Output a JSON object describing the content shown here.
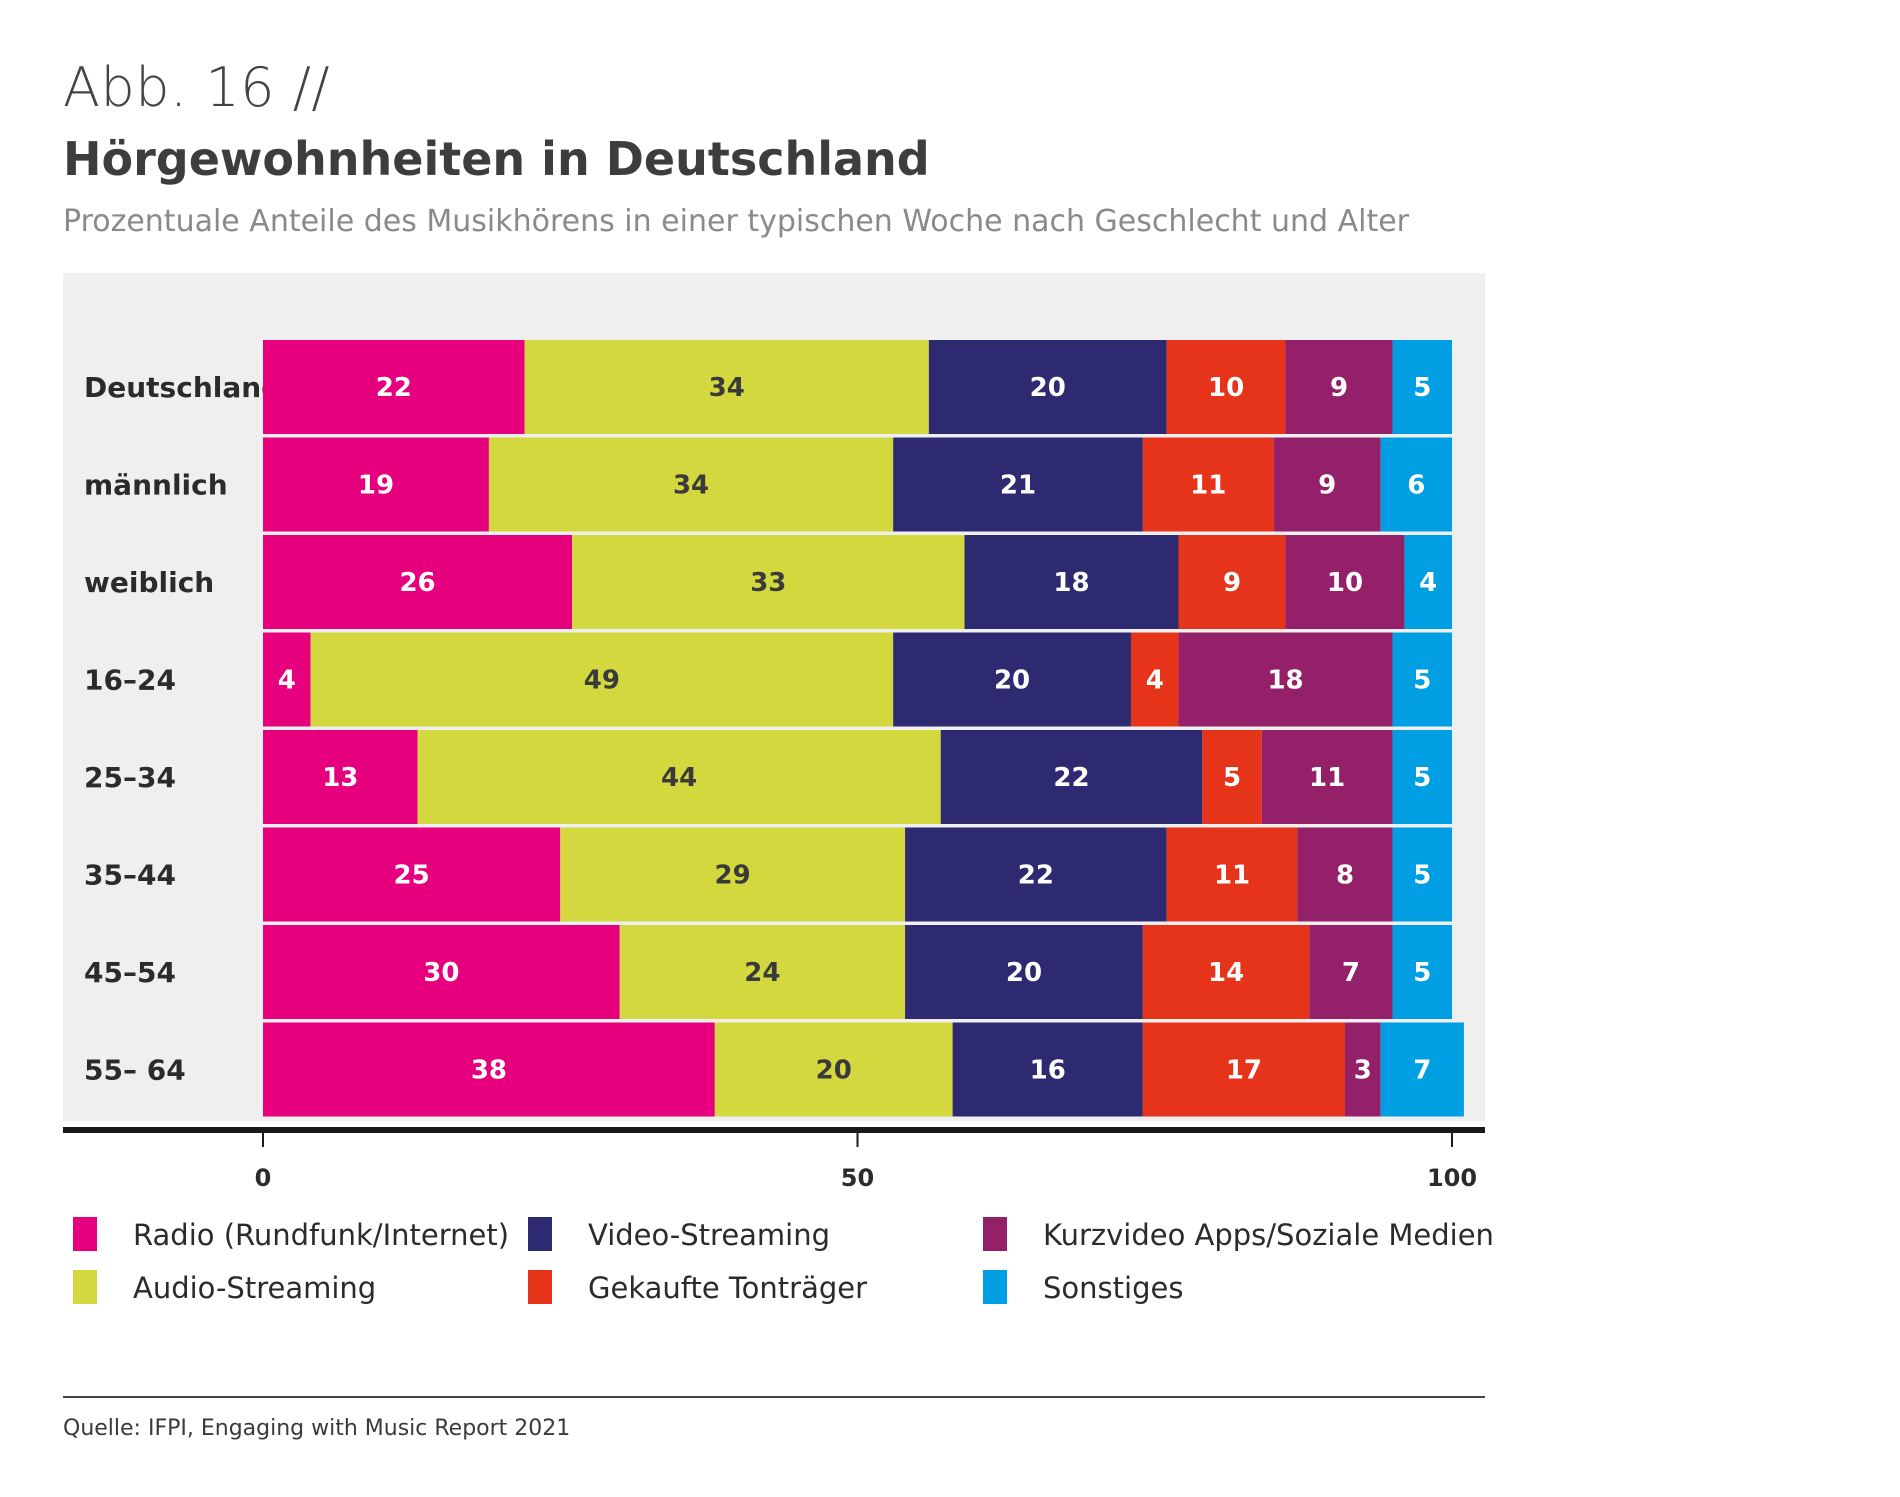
{
  "figure_label": "Abb. 16 //",
  "chart_data": {
    "type": "bar",
    "orientation": "horizontal",
    "stacked": true,
    "title": "Hörgewohnheiten in Deutschland",
    "subtitle": "Prozentuale Anteile des Musikhörens in einer typischen Woche nach Geschlecht und Alter",
    "categories": [
      "Deutschland",
      "männlich",
      "weiblich",
      "16–24",
      "25–34",
      "35–44",
      "45–54",
      "55– 64"
    ],
    "xlim": [
      0,
      100
    ],
    "xticks": [
      0,
      50,
      100
    ],
    "legend_position": "bottom",
    "series": [
      {
        "name": "Radio (Rundfunk/Internet)",
        "color": "#e6007e",
        "label_color": "#ffffff",
        "values": [
          22,
          19,
          26,
          4,
          13,
          25,
          30,
          38
        ]
      },
      {
        "name": "Audio-Streaming",
        "color": "#d3d83e",
        "label_color": "#3a3a3a",
        "values": [
          34,
          34,
          33,
          49,
          44,
          29,
          24,
          20
        ]
      },
      {
        "name": "Video-Streaming",
        "color": "#2e2a72",
        "label_color": "#ffffff",
        "values": [
          20,
          21,
          18,
          20,
          22,
          22,
          20,
          16
        ]
      },
      {
        "name": "Gekaufte Tonträger",
        "color": "#e5341a",
        "label_color": "#ffffff",
        "values": [
          10,
          11,
          9,
          4,
          5,
          11,
          14,
          17
        ]
      },
      {
        "name": "Kurzvideo Apps/Soziale Medien",
        "color": "#932069",
        "label_color": "#ffffff",
        "values": [
          9,
          9,
          10,
          18,
          11,
          8,
          7,
          3
        ]
      },
      {
        "name": "Sonstiges",
        "color": "#009fe3",
        "label_color": "#ffffff",
        "values": [
          5,
          6,
          4,
          5,
          5,
          5,
          5,
          7
        ]
      }
    ]
  },
  "source": "Quelle: IFPI, Engaging with Music Report 2021"
}
